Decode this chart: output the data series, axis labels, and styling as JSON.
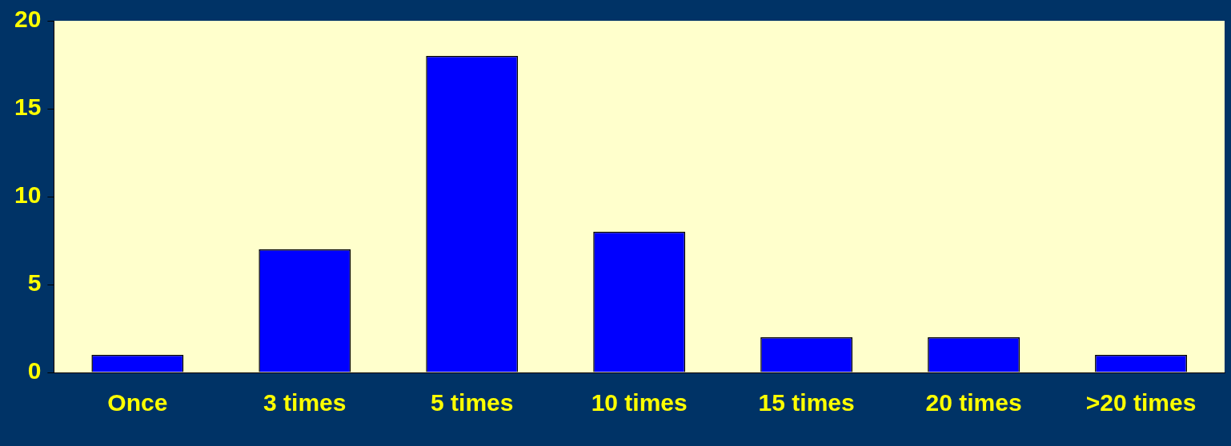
{
  "chart_data": {
    "type": "bar",
    "categories": [
      "Once",
      "3 times",
      "5 times",
      "10 times",
      "15 times",
      "20 times",
      ">20 times"
    ],
    "values": [
      1,
      7,
      18,
      8,
      2,
      2,
      1
    ],
    "color": "#0000ff",
    "ylim": [
      0,
      20
    ],
    "yticks": [
      0,
      5,
      10,
      15,
      20
    ],
    "grid": false,
    "legend": false
  }
}
